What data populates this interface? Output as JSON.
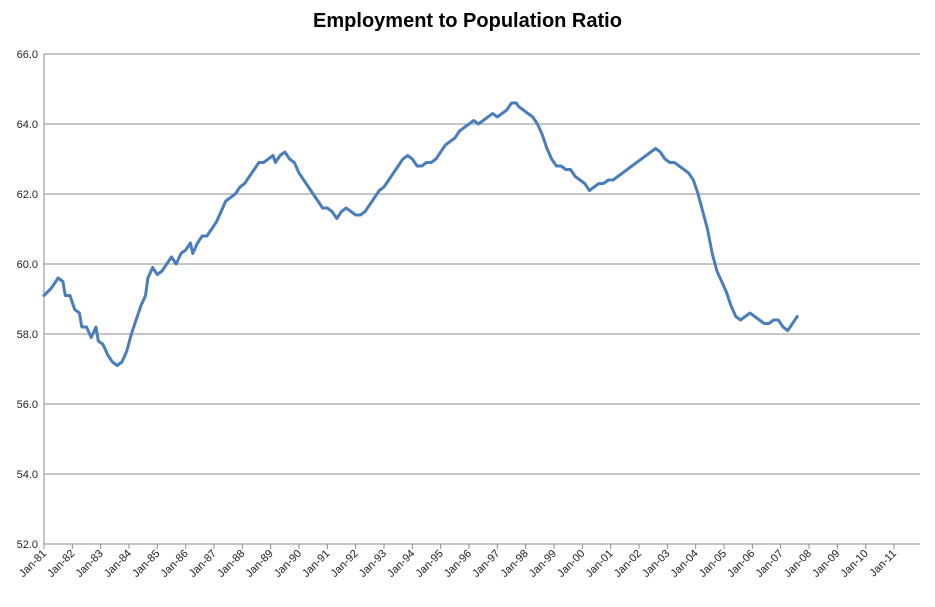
{
  "chart_data": {
    "type": "line",
    "title": "Employment to Population Ratio",
    "xlabel": "",
    "ylabel": "",
    "ylim": [
      52.0,
      66.0
    ],
    "y_ticks": [
      "52.0",
      "54.0",
      "56.0",
      "58.0",
      "60.0",
      "62.0",
      "64.0",
      "66.0"
    ],
    "x_ticks": [
      "Jan-81",
      "Jan-82",
      "Jan-83",
      "Jan-84",
      "Jan-85",
      "Jan-86",
      "Jan-87",
      "Jan-88",
      "Jan-89",
      "Jan-90",
      "Jan-91",
      "Jan-92",
      "Jan-93",
      "Jan-94",
      "Jan-95",
      "Jan-96",
      "Jan-97",
      "Jan-98",
      "Jan-99",
      "Jan-00",
      "Jan-01",
      "Jan-02",
      "Jan-03",
      "Jan-04",
      "Jan-05",
      "Jan-06",
      "Jan-07",
      "Jan-08",
      "Jan-09",
      "Jan-10",
      "Jan-11"
    ],
    "grid": true,
    "line_color": "#4a7ebb",
    "series": [
      {
        "name": "Employment to Population Ratio",
        "points": [
          [
            0,
            59.1
          ],
          [
            3,
            59.3
          ],
          [
            6,
            59.6
          ],
          [
            8,
            59.5
          ],
          [
            9,
            59.1
          ],
          [
            11,
            59.1
          ],
          [
            13,
            58.7
          ],
          [
            15,
            58.6
          ],
          [
            16,
            58.2
          ],
          [
            18,
            58.2
          ],
          [
            20,
            57.9
          ],
          [
            22,
            58.2
          ],
          [
            23,
            57.8
          ],
          [
            25,
            57.7
          ],
          [
            27,
            57.4
          ],
          [
            29,
            57.2
          ],
          [
            31,
            57.1
          ],
          [
            33,
            57.2
          ],
          [
            35,
            57.5
          ],
          [
            37,
            58.0
          ],
          [
            39,
            58.4
          ],
          [
            41,
            58.8
          ],
          [
            43,
            59.1
          ],
          [
            44,
            59.6
          ],
          [
            46,
            59.9
          ],
          [
            48,
            59.7
          ],
          [
            50,
            59.8
          ],
          [
            52,
            60.0
          ],
          [
            54,
            60.2
          ],
          [
            56,
            60.0
          ],
          [
            58,
            60.3
          ],
          [
            60,
            60.4
          ],
          [
            62,
            60.6
          ],
          [
            63,
            60.3
          ],
          [
            65,
            60.6
          ],
          [
            67,
            60.8
          ],
          [
            69,
            60.8
          ],
          [
            71,
            61.0
          ],
          [
            73,
            61.2
          ],
          [
            75,
            61.5
          ],
          [
            77,
            61.8
          ],
          [
            79,
            61.9
          ],
          [
            81,
            62.0
          ],
          [
            83,
            62.2
          ],
          [
            85,
            62.3
          ],
          [
            87,
            62.5
          ],
          [
            89,
            62.7
          ],
          [
            91,
            62.9
          ],
          [
            93,
            62.9
          ],
          [
            95,
            63.0
          ],
          [
            97,
            63.1
          ],
          [
            98,
            62.9
          ],
          [
            100,
            63.1
          ],
          [
            102,
            63.2
          ],
          [
            104,
            63.0
          ],
          [
            106,
            62.9
          ],
          [
            108,
            62.6
          ],
          [
            110,
            62.4
          ],
          [
            112,
            62.2
          ],
          [
            114,
            62.0
          ],
          [
            116,
            61.8
          ],
          [
            118,
            61.6
          ],
          [
            120,
            61.6
          ],
          [
            122,
            61.5
          ],
          [
            124,
            61.3
          ],
          [
            126,
            61.5
          ],
          [
            128,
            61.6
          ],
          [
            130,
            61.5
          ],
          [
            132,
            61.4
          ],
          [
            134,
            61.4
          ],
          [
            136,
            61.5
          ],
          [
            138,
            61.7
          ],
          [
            140,
            61.9
          ],
          [
            142,
            62.1
          ],
          [
            144,
            62.2
          ],
          [
            146,
            62.4
          ],
          [
            148,
            62.6
          ],
          [
            150,
            62.8
          ],
          [
            152,
            63.0
          ],
          [
            154,
            63.1
          ],
          [
            156,
            63.0
          ],
          [
            158,
            62.8
          ],
          [
            160,
            62.8
          ],
          [
            162,
            62.9
          ],
          [
            164,
            62.9
          ],
          [
            166,
            63.0
          ],
          [
            168,
            63.2
          ],
          [
            170,
            63.4
          ],
          [
            172,
            63.5
          ],
          [
            174,
            63.6
          ],
          [
            176,
            63.8
          ],
          [
            178,
            63.9
          ],
          [
            180,
            64.0
          ],
          [
            182,
            64.1
          ],
          [
            184,
            64.0
          ],
          [
            186,
            64.1
          ],
          [
            188,
            64.2
          ],
          [
            190,
            64.3
          ],
          [
            192,
            64.2
          ],
          [
            194,
            64.3
          ],
          [
            196,
            64.4
          ],
          [
            198,
            64.6
          ],
          [
            200,
            64.6
          ],
          [
            201,
            64.5
          ],
          [
            203,
            64.4
          ],
          [
            205,
            64.3
          ],
          [
            207,
            64.2
          ],
          [
            209,
            64.0
          ],
          [
            211,
            63.7
          ],
          [
            213,
            63.3
          ],
          [
            215,
            63.0
          ],
          [
            217,
            62.8
          ],
          [
            219,
            62.8
          ],
          [
            221,
            62.7
          ],
          [
            223,
            62.7
          ],
          [
            225,
            62.5
          ],
          [
            227,
            62.4
          ],
          [
            229,
            62.3
          ],
          [
            231,
            62.1
          ],
          [
            233,
            62.2
          ],
          [
            235,
            62.3
          ],
          [
            237,
            62.3
          ],
          [
            239,
            62.4
          ],
          [
            241,
            62.4
          ],
          [
            243,
            62.5
          ],
          [
            245,
            62.6
          ],
          [
            247,
            62.7
          ],
          [
            249,
            62.8
          ],
          [
            251,
            62.9
          ],
          [
            253,
            63.0
          ],
          [
            255,
            63.1
          ],
          [
            257,
            63.2
          ],
          [
            259,
            63.3
          ],
          [
            261,
            63.2
          ],
          [
            263,
            63.0
          ],
          [
            265,
            62.9
          ],
          [
            267,
            62.9
          ],
          [
            269,
            62.8
          ],
          [
            271,
            62.7
          ],
          [
            273,
            62.6
          ],
          [
            275,
            62.4
          ],
          [
            277,
            62.0
          ],
          [
            279,
            61.5
          ],
          [
            281,
            61.0
          ],
          [
            283,
            60.3
          ],
          [
            285,
            59.8
          ],
          [
            287,
            59.5
          ],
          [
            289,
            59.2
          ],
          [
            291,
            58.8
          ],
          [
            293,
            58.5
          ],
          [
            295,
            58.4
          ],
          [
            297,
            58.5
          ],
          [
            299,
            58.6
          ],
          [
            301,
            58.5
          ],
          [
            303,
            58.4
          ],
          [
            305,
            58.3
          ],
          [
            307,
            58.3
          ],
          [
            309,
            58.4
          ],
          [
            311,
            58.4
          ],
          [
            313,
            58.2
          ],
          [
            315,
            58.1
          ],
          [
            317,
            58.3
          ],
          [
            319,
            58.5
          ]
        ]
      }
    ],
    "x_unit_note": "x = months since Jan-81"
  }
}
